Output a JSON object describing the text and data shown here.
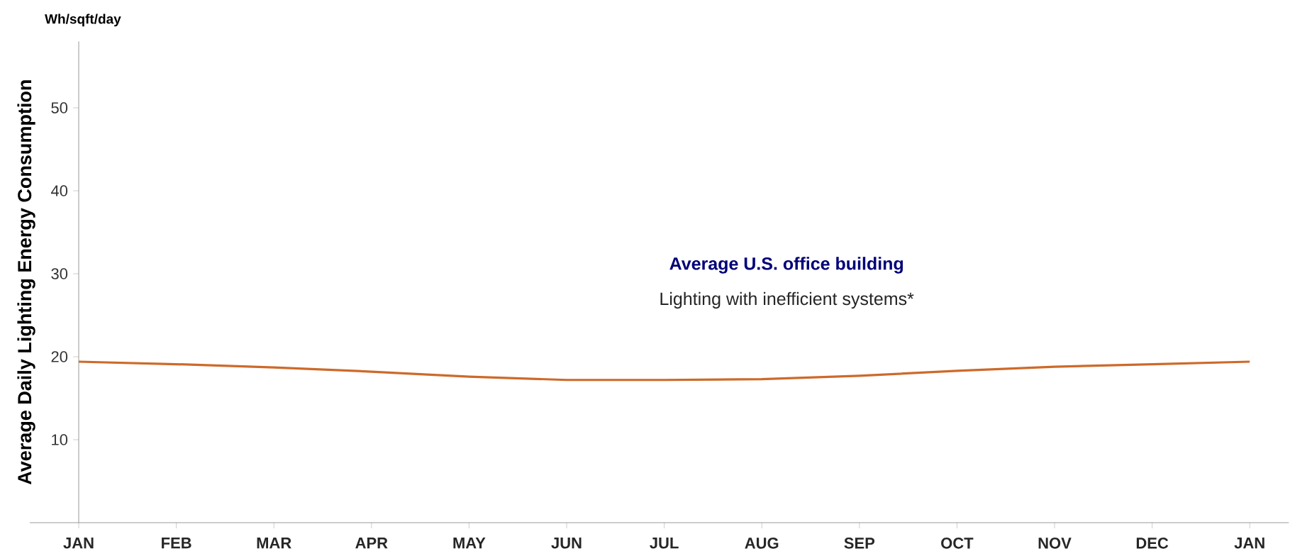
{
  "chart_data": {
    "type": "line",
    "ylabel": "Average Daily Lighting Energy Consumption",
    "categories": [
      "JAN",
      "FEB",
      "MAR",
      "APR",
      "MAY",
      "JUN",
      "JUL",
      "AUG",
      "SEP",
      "OCT",
      "NOV",
      "DEC",
      "JAN"
    ],
    "series": [
      {
        "color": "#cd6a2a",
        "values": [
          19.4,
          19.1,
          18.7,
          18.2,
          17.6,
          17.2,
          17.2,
          17.3,
          17.7,
          18.3,
          18.8,
          19.1,
          19.4
        ]
      }
    ],
    "ylim": [
      0,
      58
    ],
    "yticks": [
      10,
      20,
      30,
      40,
      50
    ],
    "grid": false,
    "marker": "none",
    "line_style": "solid",
    "annotations": [
      "Wh/sqft/day",
      "Average U.S. office building",
      "Lighting with inefficient systems*"
    ]
  }
}
